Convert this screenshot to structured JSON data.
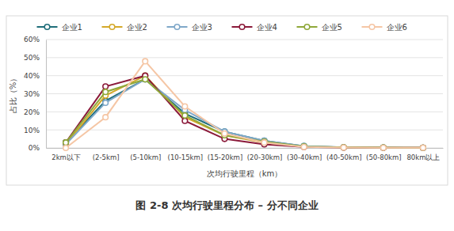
{
  "chart_data": {
    "type": "line",
    "title": "图 2-8 次均行驶里程分布 – 分不同企业",
    "x_label": "次均行驶里程（km）",
    "y_label": "占比（%）",
    "categories": [
      "2km以下",
      "(2-5km]",
      "(5-10km]",
      "(10-15km]",
      "(15-20km]",
      "(20-30km]",
      "(30-40km]",
      "(40-50km]",
      "(50-80km]",
      "80km以上"
    ],
    "series": [
      {
        "name": "企业1",
        "color": "#1f6e7a",
        "values": [
          3,
          26,
          38,
          19,
          9,
          4,
          1,
          0.3,
          0.2,
          0.1
        ]
      },
      {
        "name": "企业2",
        "color": "#d4a92a",
        "values": [
          2,
          29,
          40,
          17,
          7,
          3,
          0.8,
          0.3,
          0.2,
          0.1
        ]
      },
      {
        "name": "企业3",
        "color": "#7fa8c9",
        "values": [
          2,
          25,
          38,
          21,
          9,
          4,
          1,
          0.3,
          0.2,
          0.1
        ]
      },
      {
        "name": "企业4",
        "color": "#8b1a3a",
        "values": [
          3,
          34,
          40,
          15,
          5,
          2,
          0.5,
          0.2,
          0.1,
          0.1
        ]
      },
      {
        "name": "企业5",
        "color": "#8fa83a",
        "values": [
          3,
          31,
          38,
          18,
          7,
          3.5,
          0.8,
          0.3,
          0.2,
          0.1
        ]
      },
      {
        "name": "企业6",
        "color": "#f5c6a5",
        "values": [
          0,
          17,
          48,
          23,
          8,
          3,
          0.5,
          0.2,
          0.1,
          0.1
        ]
      }
    ],
    "ylim": [
      0,
      60
    ],
    "yticks": [
      {
        "value": 0,
        "label": "0%"
      },
      {
        "value": 10,
        "label": "10%"
      },
      {
        "value": 20,
        "label": "20%"
      },
      {
        "value": 30,
        "label": "30%"
      },
      {
        "value": 40,
        "label": "40%"
      },
      {
        "value": 50,
        "label": "50%"
      },
      {
        "value": 60,
        "label": "60%"
      }
    ],
    "grid": true,
    "legend": "top",
    "marker": "circle"
  }
}
